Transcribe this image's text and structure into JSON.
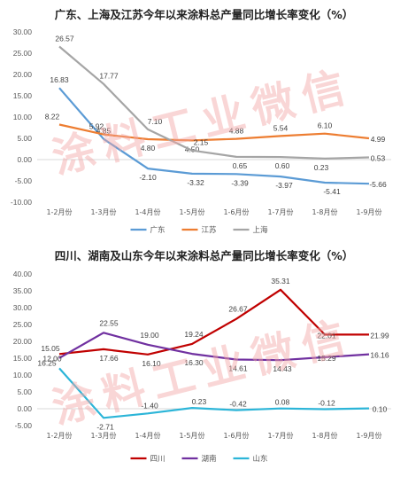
{
  "watermark": "涂料工业微信",
  "chart_data": [
    {
      "type": "line",
      "title": "广东、上海及江苏今年以来涂料总产量同比增长率变化（%）",
      "categories": [
        "1-2月份",
        "1-3月份",
        "1-4月份",
        "1-5月份",
        "1-6月份",
        "1-7月份",
        "1-8月份",
        "1-9月份"
      ],
      "ylim": [
        -10,
        30
      ],
      "yticks": [
        "30.00",
        "25.00",
        "20.00",
        "15.00",
        "10.00",
        "5.00",
        "0.00",
        "-5.00",
        "-10.00"
      ],
      "grid": false,
      "legend": "bottom",
      "series": [
        {
          "name": "广东",
          "color": "#5b9bd5",
          "values": [
            16.83,
            4.85,
            -2.1,
            -3.32,
            -3.39,
            -3.97,
            -5.41,
            -5.66
          ],
          "labels": [
            "16.83",
            "4.85",
            "-2.10",
            "-3.32",
            "-3.39",
            "-3.97",
            "-5.41",
            "-5.66"
          ]
        },
        {
          "name": "江苏",
          "color": "#ed7d31",
          "values": [
            8.22,
            5.92,
            4.8,
            4.5,
            4.88,
            5.54,
            6.1,
            4.99
          ],
          "labels": [
            "8.22",
            "5.92",
            "4.80",
            "4.50",
            "4.88",
            "5.54",
            "6.10",
            "4.99"
          ]
        },
        {
          "name": "上海",
          "color": "#a5a5a5",
          "values": [
            26.57,
            17.77,
            7.1,
            2.15,
            0.65,
            0.6,
            0.23,
            0.53
          ],
          "labels": [
            "26.57",
            "17.77",
            "7.10",
            "2.15",
            "0.65",
            "0.60",
            "0.23",
            "0.53"
          ]
        }
      ]
    },
    {
      "type": "line",
      "title": "四川、湖南及山东今年以来涂料总产量同比增长率变化（%）",
      "categories": [
        "1-2月份",
        "1-3月份",
        "1-4月份",
        "1-5月份",
        "1-6月份",
        "1-7月份",
        "1-8月份",
        "1-9月份"
      ],
      "ylim": [
        -5,
        40
      ],
      "yticks": [
        "40.00",
        "35.00",
        "30.00",
        "25.00",
        "20.00",
        "15.00",
        "10.00",
        "5.00",
        "0.00",
        "-5.00"
      ],
      "grid": false,
      "legend": "bottom",
      "series": [
        {
          "name": "四川",
          "color": "#c00000",
          "values": [
            16.25,
            17.66,
            16.1,
            19.24,
            26.67,
            35.31,
            22.01,
            21.99
          ],
          "labels": [
            "16.25",
            "17.66",
            "16.10",
            "19.24",
            "26.67",
            "35.31",
            "22.01",
            "21.99"
          ]
        },
        {
          "name": "湖南",
          "color": "#7030a0",
          "values": [
            15.05,
            22.55,
            19.0,
            16.3,
            14.61,
            14.43,
            15.29,
            16.16
          ],
          "labels": [
            "15.05",
            "22.55",
            "19.00",
            "16.30",
            "14.61",
            "14.43",
            "15.29",
            "16.16"
          ]
        },
        {
          "name": "山东",
          "color": "#2cb5d8",
          "values": [
            12.0,
            -2.71,
            -1.4,
            0.23,
            -0.42,
            0.08,
            -0.12,
            0.1
          ],
          "labels": [
            "12.00",
            "-2.71",
            "-1.40",
            "0.23",
            "-0.42",
            "0.08",
            "-0.12",
            "0.10"
          ]
        }
      ]
    }
  ]
}
